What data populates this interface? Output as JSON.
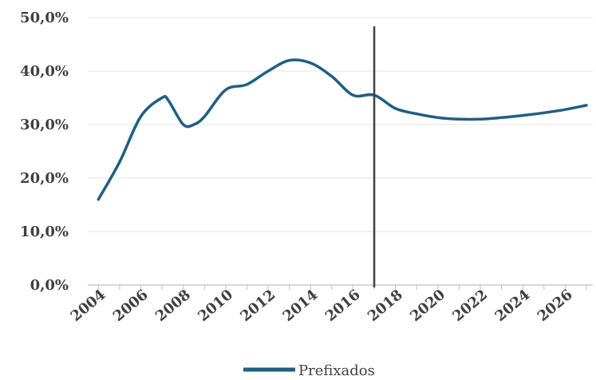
{
  "chart_data": {
    "type": "line",
    "title": "",
    "xlabel": "",
    "ylabel": "",
    "x_tick_labels": [
      "2004",
      "2006",
      "2008",
      "2010",
      "2012",
      "2014",
      "2016",
      "2018",
      "2020",
      "2022",
      "2024",
      "2026"
    ],
    "y_tick_labels": [
      "0,0%",
      "10,0%",
      "20,0%",
      "30,0%",
      "40,0%",
      "50,0%"
    ],
    "xlim": [
      2003.5,
      2027.3
    ],
    "ylim": [
      0,
      50
    ],
    "grid": "horizontal",
    "legend": "bottom-center",
    "vertical_marker_x": 2017.0,
    "series": [
      {
        "name": "Prefixados",
        "color": "#1f5f85",
        "x": [
          2004,
          2005,
          2006,
          2007,
          2007.3,
          2008,
          2008.5,
          2009,
          2010,
          2011,
          2012,
          2013,
          2014,
          2015,
          2016,
          2017,
          2018,
          2019,
          2020,
          2021,
          2022,
          2023,
          2024,
          2025,
          2026,
          2027
        ],
        "y": [
          16,
          23,
          31.5,
          35,
          34.5,
          30,
          30,
          31.5,
          36.5,
          37.5,
          40,
          42,
          41.5,
          39,
          35.5,
          35.5,
          33,
          32,
          31.3,
          31,
          31,
          31.3,
          31.7,
          32.2,
          32.8,
          33.6
        ]
      }
    ],
    "marker_color": "#404040"
  }
}
